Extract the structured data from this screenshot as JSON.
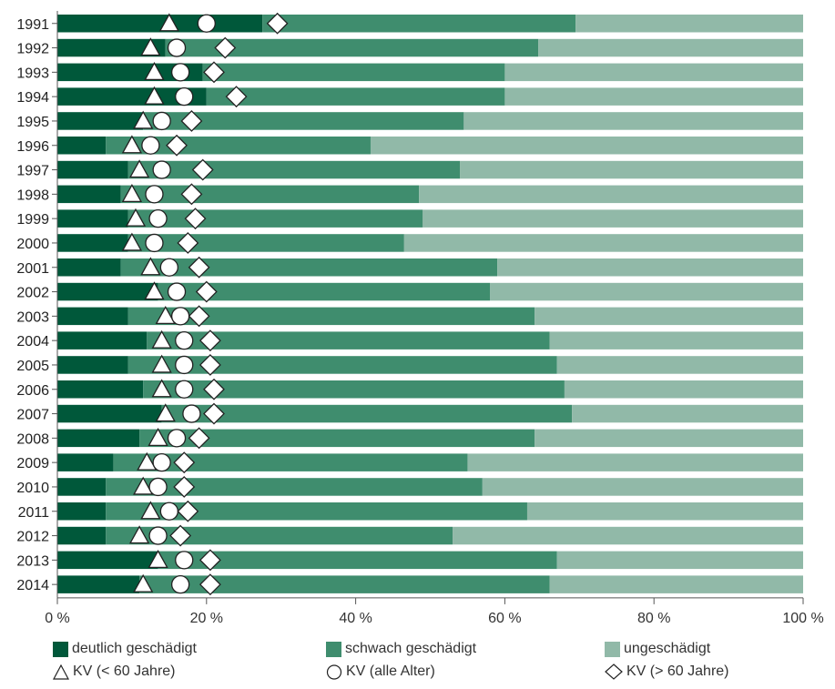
{
  "chart_data": {
    "type": "bar",
    "orientation": "horizontal",
    "stacked": true,
    "categories": [
      "1991",
      "1992",
      "1993",
      "1994",
      "1995",
      "1996",
      "1997",
      "1998",
      "1999",
      "2000",
      "2001",
      "2002",
      "2003",
      "2004",
      "2005",
      "2006",
      "2007",
      "2008",
      "2009",
      "2010",
      "2011",
      "2012",
      "2013",
      "2014"
    ],
    "series": [
      {
        "name": "deutlich geschädigt",
        "color": "#00583a",
        "values": [
          27.5,
          14.5,
          19.5,
          20.0,
          11.5,
          6.5,
          9.5,
          8.5,
          9.5,
          9.5,
          8.5,
          13.5,
          9.5,
          12.0,
          9.5,
          11.5,
          14.0,
          11.0,
          7.5,
          6.5,
          6.5,
          6.5,
          13.5,
          11.0
        ]
      },
      {
        "name": "schwach geschädigt",
        "color": "#3f8d6e",
        "values": [
          42.0,
          50.0,
          40.5,
          40.0,
          43.0,
          35.5,
          44.5,
          40.0,
          39.5,
          37.0,
          50.5,
          44.5,
          54.5,
          54.0,
          57.5,
          56.5,
          55.0,
          53.0,
          47.5,
          50.5,
          56.5,
          46.5,
          53.5,
          55.0
        ]
      },
      {
        "name": "ungeschädigt",
        "color": "#91b9a8",
        "values": [
          30.5,
          35.5,
          40.0,
          40.0,
          45.5,
          58.0,
          46.0,
          51.5,
          51.0,
          53.5,
          41.0,
          42.0,
          36.0,
          34.0,
          33.0,
          32.0,
          31.0,
          36.0,
          45.0,
          43.0,
          37.0,
          47.0,
          33.0,
          34.0
        ]
      }
    ],
    "markers": [
      {
        "name": "KV (< 60 Jahre)",
        "shape": "triangle",
        "values": [
          15.0,
          12.5,
          13.0,
          13.0,
          11.5,
          10.0,
          11.0,
          10.0,
          10.5,
          10.0,
          12.5,
          13.0,
          14.5,
          14.0,
          14.0,
          14.0,
          14.5,
          13.5,
          12.0,
          11.5,
          12.5,
          11.0,
          13.5,
          11.5
        ]
      },
      {
        "name": "KV (alle Alter)",
        "shape": "circle",
        "values": [
          20.0,
          16.0,
          16.5,
          17.0,
          14.0,
          12.5,
          14.0,
          13.0,
          13.5,
          13.0,
          15.0,
          16.0,
          16.5,
          17.0,
          17.0,
          17.0,
          18.0,
          16.0,
          14.0,
          13.5,
          15.0,
          13.5,
          17.0,
          16.5
        ]
      },
      {
        "name": "KV (> 60 Jahre)",
        "shape": "diamond",
        "values": [
          29.5,
          22.5,
          21.0,
          24.0,
          18.0,
          16.0,
          19.5,
          18.0,
          18.5,
          17.5,
          19.0,
          20.0,
          19.0,
          20.5,
          20.5,
          21.0,
          21.0,
          19.0,
          17.0,
          17.0,
          17.5,
          16.5,
          20.5,
          20.5
        ]
      }
    ],
    "xaxis": {
      "ticks": [
        0,
        20,
        40,
        60,
        80,
        100
      ],
      "tick_labels": [
        "0 %",
        "20 %",
        "40 %",
        "60 %",
        "80 %",
        "100 %"
      ],
      "range": [
        0,
        100
      ]
    },
    "title": "",
    "xlabel": "",
    "ylabel": "",
    "grid": false,
    "legend_position": "bottom"
  }
}
